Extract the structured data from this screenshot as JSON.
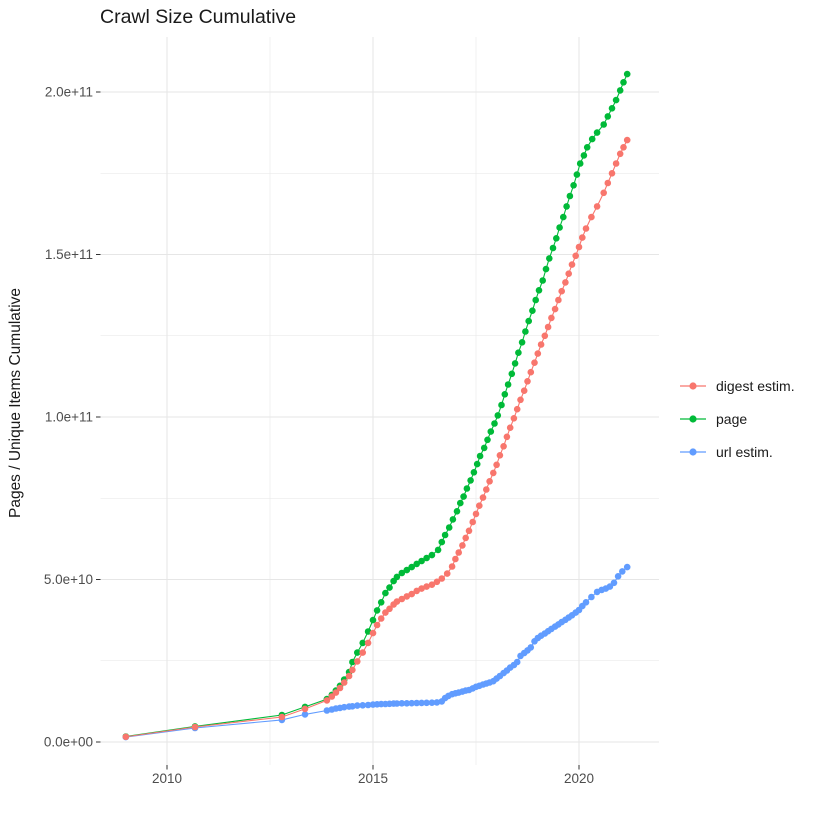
{
  "chart_data": {
    "type": "scatter",
    "title": "Crawl Size Cumulative",
    "xlabel": "",
    "ylabel": "Pages / Unique Items Cumulative",
    "legend_position": "right",
    "grid": true,
    "xlim": [
      2008.35,
      2021.95
    ],
    "ylim": [
      -7000000000,
      217000000000
    ],
    "values_unit": "1e9",
    "x_ticks": {
      "values": [
        2010,
        2015,
        2020
      ],
      "labels": [
        "2010",
        "2015",
        "2020"
      ]
    },
    "x_minor_ticks": [
      2012.5,
      2017.5
    ],
    "y_ticks": {
      "values_e9": [
        0,
        50,
        100,
        150,
        200
      ],
      "labels": [
        "0.0e+00",
        "5.0e+10",
        "1.0e+11",
        "1.5e+11",
        "2.0e+11"
      ]
    },
    "y_minor_ticks_e9": [
      25,
      75,
      125,
      175
    ],
    "draw_order": [
      1,
      2,
      0
    ],
    "series": [
      {
        "name": "digest estim.",
        "color": "#F8766D",
        "points": [
          [
            2009.0,
            1.6
          ],
          [
            2010.68,
            4.6
          ],
          [
            2012.79,
            7.7
          ],
          [
            2013.35,
            10.2
          ],
          [
            2013.88,
            12.8
          ],
          [
            2014.0,
            14.0
          ],
          [
            2014.1,
            15.2
          ],
          [
            2014.2,
            16.6
          ],
          [
            2014.3,
            18.3
          ],
          [
            2014.42,
            20.3
          ],
          [
            2014.5,
            22.2
          ],
          [
            2014.62,
            24.8
          ],
          [
            2014.75,
            27.5
          ],
          [
            2014.88,
            30.5
          ],
          [
            2015.0,
            33.5
          ],
          [
            2015.1,
            36.0
          ],
          [
            2015.2,
            38.0
          ],
          [
            2015.3,
            39.8
          ],
          [
            2015.4,
            41.0
          ],
          [
            2015.5,
            42.3
          ],
          [
            2015.58,
            43.2
          ],
          [
            2015.7,
            44.0
          ],
          [
            2015.82,
            44.8
          ],
          [
            2015.94,
            45.5
          ],
          [
            2016.06,
            46.5
          ],
          [
            2016.18,
            47.2
          ],
          [
            2016.3,
            47.8
          ],
          [
            2016.43,
            48.4
          ],
          [
            2016.55,
            49.3
          ],
          [
            2016.67,
            50.3
          ],
          [
            2016.8,
            51.8
          ],
          [
            2016.92,
            54.0
          ],
          [
            2017.0,
            56.3
          ],
          [
            2017.08,
            58.3
          ],
          [
            2017.17,
            60.5
          ],
          [
            2017.25,
            62.8
          ],
          [
            2017.33,
            65.0
          ],
          [
            2017.42,
            67.7
          ],
          [
            2017.5,
            70.2
          ],
          [
            2017.58,
            72.7
          ],
          [
            2017.67,
            75.2
          ],
          [
            2017.75,
            77.7
          ],
          [
            2017.83,
            80.2
          ],
          [
            2017.92,
            82.8
          ],
          [
            2018.0,
            85.3
          ],
          [
            2018.08,
            88.2
          ],
          [
            2018.17,
            91.0
          ],
          [
            2018.25,
            93.9
          ],
          [
            2018.33,
            96.7
          ],
          [
            2018.42,
            99.6
          ],
          [
            2018.5,
            102.4
          ],
          [
            2018.58,
            105.3
          ],
          [
            2018.67,
            108.1
          ],
          [
            2018.75,
            111.0
          ],
          [
            2018.83,
            113.8
          ],
          [
            2018.92,
            116.7
          ],
          [
            2019.0,
            119.5
          ],
          [
            2019.08,
            122.3
          ],
          [
            2019.17,
            125.0
          ],
          [
            2019.25,
            127.7
          ],
          [
            2019.33,
            130.5
          ],
          [
            2019.42,
            133.2
          ],
          [
            2019.5,
            136.0
          ],
          [
            2019.58,
            138.7
          ],
          [
            2019.67,
            141.4
          ],
          [
            2019.75,
            144.1
          ],
          [
            2019.83,
            146.9
          ],
          [
            2019.92,
            149.6
          ],
          [
            2020.0,
            152.3
          ],
          [
            2020.08,
            155.2
          ],
          [
            2020.17,
            158.0
          ],
          [
            2020.3,
            161.5
          ],
          [
            2020.44,
            164.8
          ],
          [
            2020.6,
            169.0
          ],
          [
            2020.7,
            172.0
          ],
          [
            2020.8,
            175.0
          ],
          [
            2020.9,
            178.0
          ],
          [
            2021.0,
            181.0
          ],
          [
            2021.08,
            183.0
          ],
          [
            2021.17,
            185.2
          ]
        ]
      },
      {
        "name": "page",
        "color": "#00BA38",
        "points": [
          [
            2009.0,
            1.7
          ],
          [
            2010.68,
            4.8
          ],
          [
            2012.79,
            8.3
          ],
          [
            2013.35,
            10.8
          ],
          [
            2013.88,
            13.2
          ],
          [
            2014.0,
            14.5
          ],
          [
            2014.1,
            15.8
          ],
          [
            2014.2,
            17.3
          ],
          [
            2014.3,
            19.2
          ],
          [
            2014.42,
            21.5
          ],
          [
            2014.5,
            24.6
          ],
          [
            2014.62,
            27.5
          ],
          [
            2014.75,
            30.5
          ],
          [
            2014.88,
            34.0
          ],
          [
            2015.0,
            37.5
          ],
          [
            2015.1,
            40.5
          ],
          [
            2015.2,
            43.0
          ],
          [
            2015.3,
            45.8
          ],
          [
            2015.4,
            47.5
          ],
          [
            2015.5,
            49.5
          ],
          [
            2015.58,
            50.8
          ],
          [
            2015.7,
            52.0
          ],
          [
            2015.82,
            52.9
          ],
          [
            2015.94,
            53.8
          ],
          [
            2016.06,
            54.8
          ],
          [
            2016.18,
            55.7
          ],
          [
            2016.3,
            56.6
          ],
          [
            2016.43,
            57.5
          ],
          [
            2016.58,
            59.1
          ],
          [
            2016.67,
            61.5
          ],
          [
            2016.75,
            63.7
          ],
          [
            2016.85,
            66.0
          ],
          [
            2016.94,
            68.5
          ],
          [
            2017.04,
            71.0
          ],
          [
            2017.12,
            73.5
          ],
          [
            2017.2,
            75.5
          ],
          [
            2017.28,
            78.0
          ],
          [
            2017.37,
            80.5
          ],
          [
            2017.45,
            83.0
          ],
          [
            2017.53,
            85.5
          ],
          [
            2017.6,
            88.0
          ],
          [
            2017.7,
            90.5
          ],
          [
            2017.78,
            93.0
          ],
          [
            2017.86,
            95.5
          ],
          [
            2017.95,
            98.0
          ],
          [
            2018.03,
            100.5
          ],
          [
            2018.12,
            103.7
          ],
          [
            2018.2,
            107.0
          ],
          [
            2018.28,
            110.0
          ],
          [
            2018.37,
            113.3
          ],
          [
            2018.45,
            116.5
          ],
          [
            2018.53,
            119.8
          ],
          [
            2018.62,
            123.0
          ],
          [
            2018.7,
            126.3
          ],
          [
            2018.78,
            129.5
          ],
          [
            2018.87,
            132.7
          ],
          [
            2018.95,
            136.0
          ],
          [
            2019.03,
            139.0
          ],
          [
            2019.12,
            142.0
          ],
          [
            2019.2,
            145.5
          ],
          [
            2019.28,
            148.8
          ],
          [
            2019.37,
            152.0
          ],
          [
            2019.45,
            155.0
          ],
          [
            2019.53,
            158.3
          ],
          [
            2019.62,
            161.5
          ],
          [
            2019.7,
            164.8
          ],
          [
            2019.78,
            168.0
          ],
          [
            2019.87,
            171.3
          ],
          [
            2019.95,
            174.6
          ],
          [
            2020.03,
            178.0
          ],
          [
            2020.12,
            180.5
          ],
          [
            2020.2,
            183.0
          ],
          [
            2020.32,
            185.5
          ],
          [
            2020.44,
            187.5
          ],
          [
            2020.6,
            190.0
          ],
          [
            2020.7,
            192.5
          ],
          [
            2020.8,
            195.0
          ],
          [
            2020.9,
            197.5
          ],
          [
            2021.0,
            200.5
          ],
          [
            2021.08,
            203.0
          ],
          [
            2021.17,
            205.5
          ]
        ]
      },
      {
        "name": "url estim.",
        "color": "#619CFF",
        "points": [
          [
            2009.0,
            1.5
          ],
          [
            2010.68,
            4.3
          ],
          [
            2012.79,
            6.8
          ],
          [
            2013.35,
            8.5
          ],
          [
            2013.88,
            9.7
          ],
          [
            2014.0,
            10.0
          ],
          [
            2014.1,
            10.3
          ],
          [
            2014.2,
            10.5
          ],
          [
            2014.3,
            10.7
          ],
          [
            2014.42,
            10.9
          ],
          [
            2014.5,
            11.0
          ],
          [
            2014.62,
            11.2
          ],
          [
            2014.75,
            11.3
          ],
          [
            2014.88,
            11.4
          ],
          [
            2015.0,
            11.5
          ],
          [
            2015.1,
            11.6
          ],
          [
            2015.2,
            11.65
          ],
          [
            2015.3,
            11.7
          ],
          [
            2015.4,
            11.75
          ],
          [
            2015.5,
            11.8
          ],
          [
            2015.58,
            11.85
          ],
          [
            2015.7,
            11.9
          ],
          [
            2015.82,
            11.92
          ],
          [
            2015.94,
            11.95
          ],
          [
            2016.06,
            12.0
          ],
          [
            2016.18,
            12.02
          ],
          [
            2016.3,
            12.05
          ],
          [
            2016.43,
            12.1
          ],
          [
            2016.55,
            12.2
          ],
          [
            2016.67,
            12.5
          ],
          [
            2016.75,
            13.5
          ],
          [
            2016.83,
            14.2
          ],
          [
            2016.92,
            14.7
          ],
          [
            2017.0,
            15.0
          ],
          [
            2017.08,
            15.2
          ],
          [
            2017.17,
            15.5
          ],
          [
            2017.25,
            15.8
          ],
          [
            2017.33,
            16.0
          ],
          [
            2017.42,
            16.5
          ],
          [
            2017.5,
            17.0
          ],
          [
            2017.58,
            17.3
          ],
          [
            2017.67,
            17.7
          ],
          [
            2017.75,
            18.0
          ],
          [
            2017.83,
            18.3
          ],
          [
            2017.92,
            18.7
          ],
          [
            2018.0,
            19.5
          ],
          [
            2018.08,
            20.3
          ],
          [
            2018.17,
            21.2
          ],
          [
            2018.25,
            22.0
          ],
          [
            2018.33,
            22.9
          ],
          [
            2018.42,
            23.7
          ],
          [
            2018.5,
            24.6
          ],
          [
            2018.58,
            26.5
          ],
          [
            2018.67,
            27.4
          ],
          [
            2018.75,
            28.2
          ],
          [
            2018.83,
            29.1
          ],
          [
            2018.92,
            31.0
          ],
          [
            2019.0,
            32.0
          ],
          [
            2019.08,
            32.7
          ],
          [
            2019.17,
            33.4
          ],
          [
            2019.25,
            34.1
          ],
          [
            2019.33,
            34.8
          ],
          [
            2019.42,
            35.5
          ],
          [
            2019.5,
            36.2
          ],
          [
            2019.58,
            36.9
          ],
          [
            2019.67,
            37.6
          ],
          [
            2019.75,
            38.3
          ],
          [
            2019.83,
            39.0
          ],
          [
            2019.92,
            39.8
          ],
          [
            2020.0,
            40.6
          ],
          [
            2020.08,
            41.8
          ],
          [
            2020.17,
            43.0
          ],
          [
            2020.3,
            44.6
          ],
          [
            2020.44,
            46.2
          ],
          [
            2020.55,
            46.8
          ],
          [
            2020.65,
            47.2
          ],
          [
            2020.75,
            47.8
          ],
          [
            2020.85,
            49.0
          ],
          [
            2020.95,
            51.0
          ],
          [
            2021.05,
            52.5
          ],
          [
            2021.17,
            53.8
          ]
        ]
      }
    ]
  }
}
